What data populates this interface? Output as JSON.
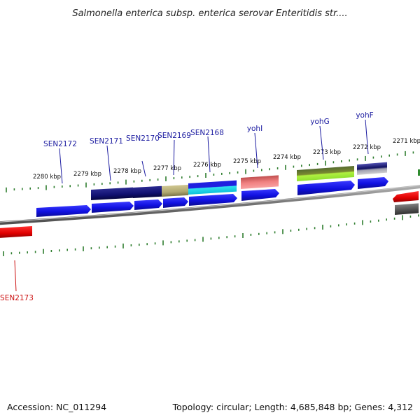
{
  "title": "Salmonella enterica subsp. enterica serovar Enteritidis str....",
  "footer": {
    "accession": "Accession: NC_011294",
    "topology": "Topology: circular; Length: 4,685,848 bp; Genes: 4,312"
  },
  "colors": {
    "axis": "#808080",
    "tick": "#2e7d2e",
    "label_plus": "#1a1aa0",
    "label_minus": "#cc1111"
  },
  "scale_labels": [
    "2280 kbp",
    "2279 kbp",
    "2278 kbp",
    "2277 kbp",
    "2276 kbp",
    "2275 kbp",
    "2274 kbp",
    "2273 kbp",
    "2272 kbp",
    "2271 kbp"
  ],
  "genes": [
    {
      "name": "SEN2172",
      "color": "#1a1ae6"
    },
    {
      "name": "SEN2171",
      "color": "#1a1ae6"
    },
    {
      "name": "SEN2170",
      "color": "#1a1ae6"
    },
    {
      "name": "SEN2169",
      "color": "#1a1ae6"
    },
    {
      "name": "SEN2168",
      "color": "#1a1ae6"
    },
    {
      "name": "yohI",
      "color": "#1a1ae6"
    },
    {
      "name": "yohG",
      "color": "#1a1ae6"
    },
    {
      "name": "yohF",
      "color": "#1a1ae6"
    },
    {
      "name": "SEN2173",
      "color": "#dd1111"
    }
  ]
}
